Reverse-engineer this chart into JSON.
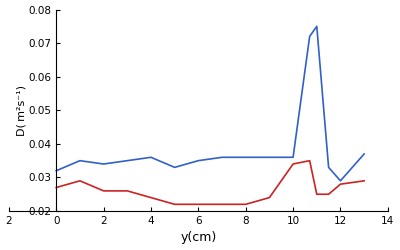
{
  "blue_x": [
    0,
    1,
    2,
    3,
    4,
    5,
    6,
    7,
    8,
    9,
    10,
    10.7,
    11,
    11.5,
    12,
    13
  ],
  "blue_y": [
    0.032,
    0.035,
    0.034,
    0.035,
    0.036,
    0.033,
    0.035,
    0.036,
    0.036,
    0.036,
    0.036,
    0.072,
    0.075,
    0.033,
    0.029,
    0.037
  ],
  "red_x": [
    0,
    1,
    2,
    3,
    4,
    5,
    6,
    7,
    8,
    9,
    10,
    10.7,
    11,
    11.5,
    12,
    13
  ],
  "red_y": [
    0.027,
    0.029,
    0.026,
    0.026,
    0.024,
    0.022,
    0.022,
    0.022,
    0.022,
    0.024,
    0.034,
    0.035,
    0.025,
    0.025,
    0.028,
    0.029
  ],
  "xlim": [
    -2,
    14
  ],
  "ylim": [
    0.02,
    0.08
  ],
  "xtick_vals": [
    -2,
    0,
    2,
    4,
    6,
    8,
    10,
    12,
    14
  ],
  "xtick_labels": [
    "2",
    "0",
    "2",
    "4",
    "6",
    "8",
    "10",
    "12",
    "14"
  ],
  "ytick_vals": [
    0.02,
    0.03,
    0.04,
    0.05,
    0.06,
    0.07,
    0.08
  ],
  "ytick_labels": [
    "0.02",
    "0.03",
    "0.04",
    "0.05",
    "0.06",
    "0.07",
    "0.08"
  ],
  "xlabel": "y(cm)",
  "ylabel": "D( m²s⁻¹)",
  "blue_color": "#3060c8",
  "red_color": "#cc2222",
  "linewidth": 1.2,
  "bg_color": "#ffffff"
}
